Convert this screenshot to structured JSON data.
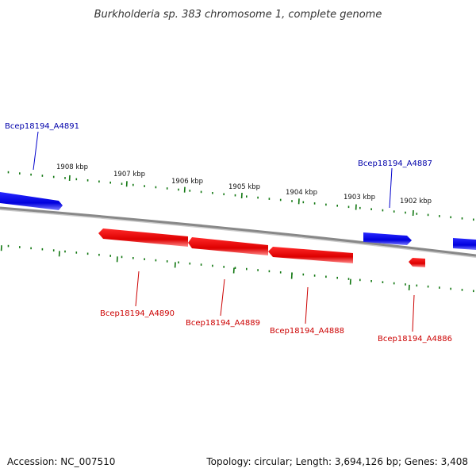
{
  "title": "Burkholderia sp. 383 chromosome 1, complete genome",
  "footer": {
    "accession": "Accession: NC_007510",
    "summary": "Topology: circular; Length: 3,694,126 bp; Genes: 3,408"
  },
  "colors": {
    "forward": "#0000ee",
    "reverse": "#ee0000",
    "backbone": "#888888",
    "tick": "#117711",
    "forward_label": "#0000aa",
    "reverse_label": "#cc0000"
  },
  "kbp_ticks": [
    "1902 kbp",
    "1903 kbp",
    "1904 kbp",
    "1905 kbp",
    "1906 kbp",
    "1907 kbp",
    "1908 kbp"
  ],
  "genes_forward": [
    {
      "label": "Bcep18194_A4891"
    },
    {
      "label": "Bcep18194_A4887"
    }
  ],
  "genes_reverse": [
    {
      "label": "Bcep18194_A4890"
    },
    {
      "label": "Bcep18194_A4889"
    },
    {
      "label": "Bcep18194_A4888"
    },
    {
      "label": "Bcep18194_A4886"
    }
  ]
}
